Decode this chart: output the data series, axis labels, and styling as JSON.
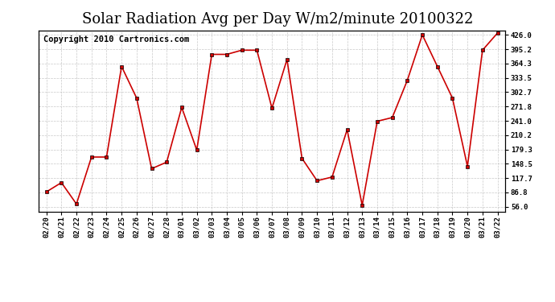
{
  "title": "Solar Radiation Avg per Day W/m2/minute 20100322",
  "copyright": "Copyright 2010 Cartronics.com",
  "dates": [
    "02/20",
    "02/21",
    "02/22",
    "02/23",
    "02/24",
    "02/25",
    "02/26",
    "02/27",
    "02/28",
    "03/01",
    "03/02",
    "03/03",
    "03/04",
    "03/05",
    "03/06",
    "03/07",
    "03/08",
    "03/09",
    "03/10",
    "03/11",
    "03/12",
    "03/13",
    "03/14",
    "03/15",
    "03/16",
    "03/17",
    "03/18",
    "03/19",
    "03/20",
    "03/21",
    "03/22"
  ],
  "values": [
    88.0,
    108.0,
    62.0,
    163.0,
    163.0,
    358.0,
    290.0,
    138.0,
    152.0,
    270.0,
    178.0,
    384.0,
    384.0,
    393.0,
    393.0,
    268.0,
    373.0,
    160.0,
    112.0,
    120.0,
    222.0,
    59.0,
    240.0,
    248.0,
    328.0,
    426.0,
    358.0,
    290.0,
    143.0,
    393.0,
    430.0
  ],
  "line_color": "#cc0000",
  "marker_color": "#000000",
  "bg_color": "#ffffff",
  "plot_bg_color": "#ffffff",
  "grid_color": "#bbbbbb",
  "yticks": [
    56.0,
    86.8,
    117.7,
    148.5,
    179.3,
    210.2,
    241.0,
    271.8,
    302.7,
    333.5,
    364.3,
    395.2,
    426.0
  ],
  "ylim": [
    46.0,
    436.0
  ],
  "title_fontsize": 13,
  "copyright_fontsize": 7.5
}
